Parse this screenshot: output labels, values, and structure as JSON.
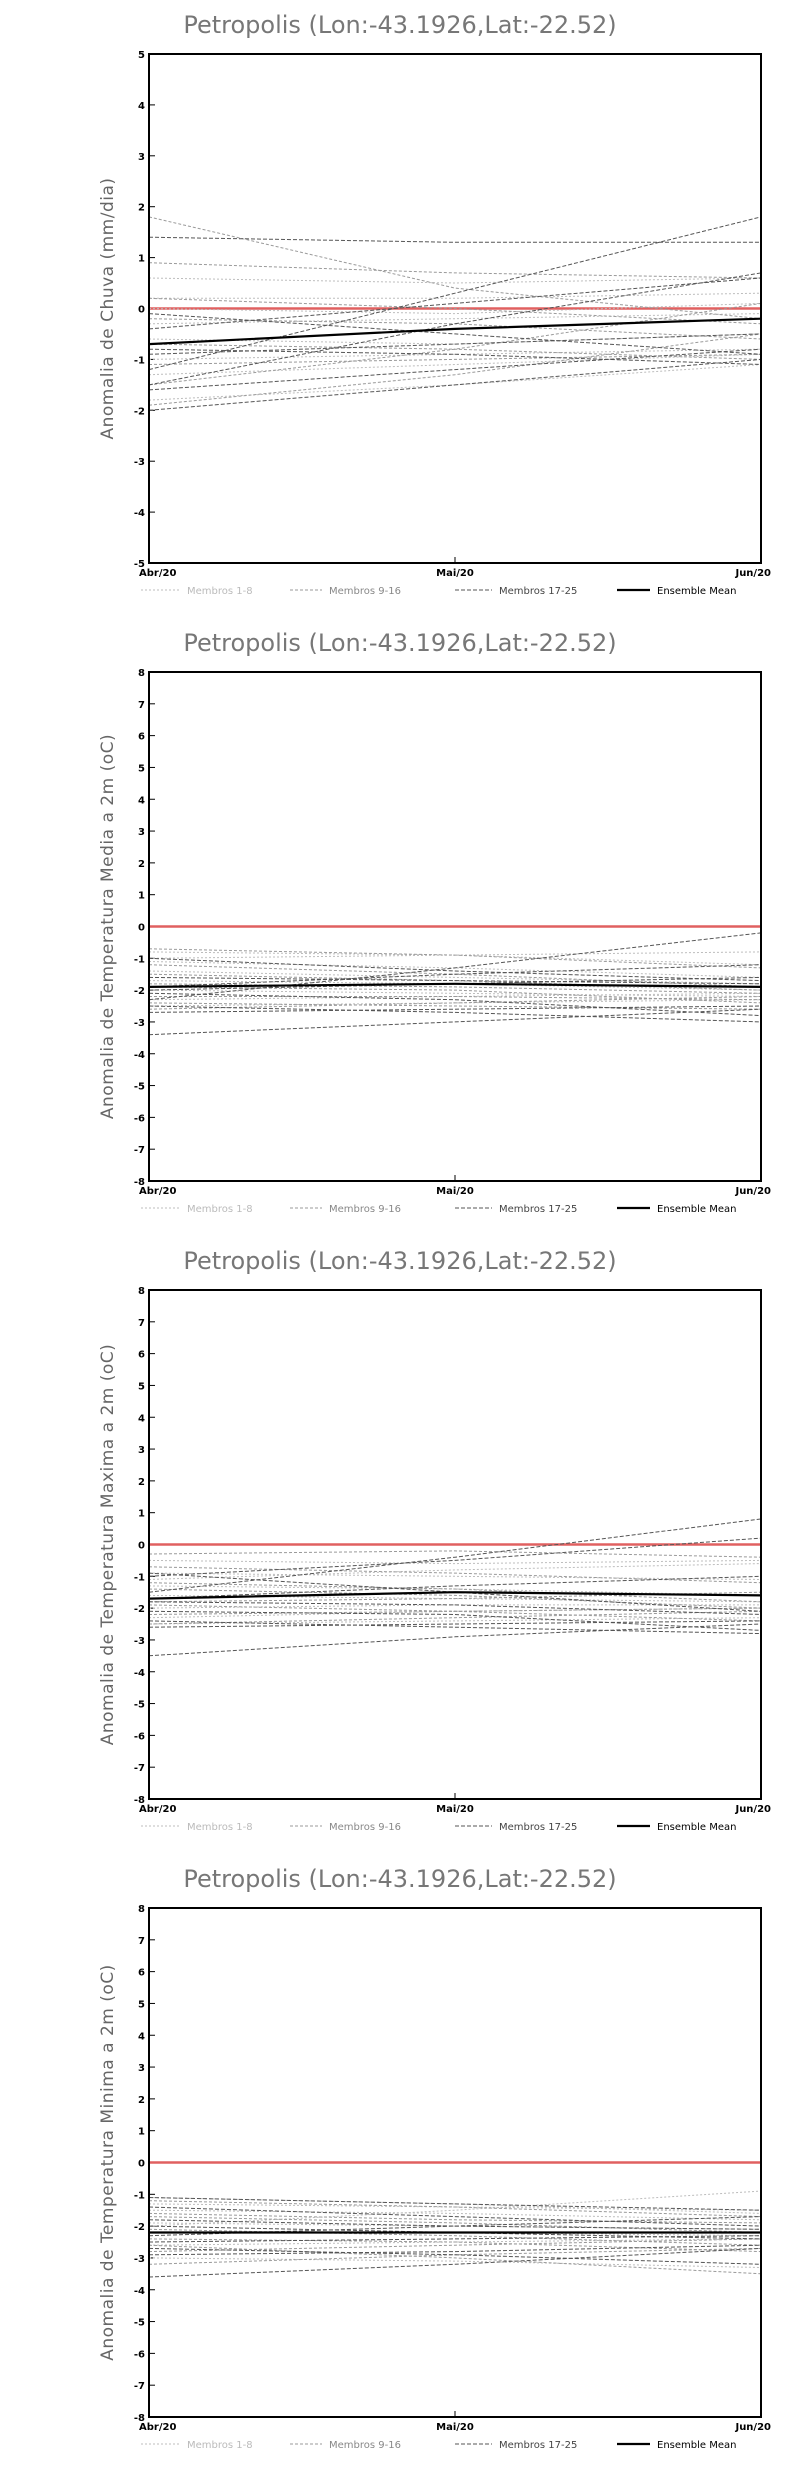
{
  "chart_data": [
    {
      "type": "line",
      "title": "Petropolis (Lon:-43.1926,Lat:-22.52)",
      "ylabel": "Anomalia de Chuva (mm/dia)",
      "x": [
        "Abr/20",
        "Mai/20",
        "Jun/20"
      ],
      "ylim": [
        -5,
        5
      ],
      "yticks": [
        -5,
        -4,
        -3,
        -2,
        -1,
        0,
        1,
        2,
        3,
        4,
        5
      ],
      "legend_position": "bottom",
      "legend": [
        "Membros 1-8",
        "Membros 9-16",
        "Membros 17-25",
        "Ensemble Mean"
      ],
      "reference_line": {
        "value": 0,
        "color": "#e06060"
      },
      "series": [
        {
          "group": 0,
          "values": [
            0.6,
            0.5,
            0.6
          ]
        },
        {
          "group": 0,
          "values": [
            0.2,
            0.2,
            0.3
          ]
        },
        {
          "group": 0,
          "values": [
            0.0,
            -0.1,
            0.1
          ]
        },
        {
          "group": 0,
          "values": [
            -0.3,
            -0.2,
            -0.1
          ]
        },
        {
          "group": 0,
          "values": [
            -0.6,
            -0.7,
            -0.5
          ]
        },
        {
          "group": 0,
          "values": [
            -1.0,
            -0.9,
            -0.8
          ]
        },
        {
          "group": 0,
          "values": [
            -1.3,
            -1.1,
            -0.9
          ]
        },
        {
          "group": 0,
          "values": [
            -1.8,
            -1.5,
            -1.1
          ]
        },
        {
          "group": 1,
          "values": [
            1.8,
            0.4,
            -0.2
          ]
        },
        {
          "group": 1,
          "values": [
            0.9,
            0.7,
            0.6
          ]
        },
        {
          "group": 1,
          "values": [
            0.2,
            0.0,
            -0.3
          ]
        },
        {
          "group": 1,
          "values": [
            -0.2,
            -0.3,
            -0.6
          ]
        },
        {
          "group": 1,
          "values": [
            -0.7,
            -0.8,
            -1.0
          ]
        },
        {
          "group": 1,
          "values": [
            -1.1,
            -1.0,
            -0.9
          ]
        },
        {
          "group": 1,
          "values": [
            -1.5,
            -0.8,
            0.1
          ]
        },
        {
          "group": 1,
          "values": [
            -1.9,
            -1.3,
            -0.5
          ]
        },
        {
          "group": 2,
          "values": [
            1.4,
            1.3,
            1.3
          ]
        },
        {
          "group": 2,
          "values": [
            -0.4,
            0.1,
            0.6
          ]
        },
        {
          "group": 2,
          "values": [
            -1.2,
            0.3,
            1.8
          ]
        },
        {
          "group": 2,
          "values": [
            -1.5,
            -0.3,
            0.7
          ]
        },
        {
          "group": 2,
          "values": [
            -0.9,
            -0.7,
            -0.5
          ]
        },
        {
          "group": 2,
          "values": [
            -2.0,
            -1.5,
            -1.0
          ]
        },
        {
          "group": 2,
          "values": [
            -1.6,
            -1.2,
            -0.8
          ]
        },
        {
          "group": 2,
          "values": [
            -0.8,
            -0.9,
            -1.1
          ]
        },
        {
          "group": 2,
          "values": [
            -0.1,
            -0.5,
            -0.9
          ]
        },
        {
          "group": 3,
          "values": [
            -0.7,
            -0.4,
            -0.2
          ]
        }
      ]
    },
    {
      "type": "line",
      "title": "Petropolis (Lon:-43.1926,Lat:-22.52)",
      "ylabel": "Anomalia de Temperatura Media a 2m (oC)",
      "x": [
        "Abr/20",
        "Mai/20",
        "Jun/20"
      ],
      "ylim": [
        -8,
        8
      ],
      "yticks": [
        -8,
        -7,
        -6,
        -5,
        -4,
        -3,
        -2,
        -1,
        0,
        1,
        2,
        3,
        4,
        5,
        6,
        7,
        8
      ],
      "legend_position": "bottom",
      "legend": [
        "Membros 1-8",
        "Membros 9-16",
        "Membros 17-25",
        "Ensemble Mean"
      ],
      "reference_line": {
        "value": 0,
        "color": "#e06060"
      },
      "series": [
        {
          "group": 0,
          "values": [
            -0.8,
            -0.9,
            -1.2
          ]
        },
        {
          "group": 0,
          "values": [
            -1.1,
            -1.3,
            -1.6
          ]
        },
        {
          "group": 0,
          "values": [
            -1.4,
            -1.6,
            -1.8
          ]
        },
        {
          "group": 0,
          "values": [
            -1.7,
            -1.8,
            -2.0
          ]
        },
        {
          "group": 0,
          "values": [
            -2.0,
            -2.1,
            -2.2
          ]
        },
        {
          "group": 0,
          "values": [
            -2.3,
            -2.2,
            -2.1
          ]
        },
        {
          "group": 0,
          "values": [
            -2.5,
            -2.4,
            -2.3
          ]
        },
        {
          "group": 0,
          "values": [
            -1.0,
            -0.9,
            -0.8
          ]
        },
        {
          "group": 1,
          "values": [
            -0.7,
            -0.9,
            -1.3
          ]
        },
        {
          "group": 1,
          "values": [
            -1.2,
            -1.5,
            -1.9
          ]
        },
        {
          "group": 1,
          "values": [
            -1.8,
            -1.9,
            -2.1
          ]
        },
        {
          "group": 1,
          "values": [
            -2.2,
            -2.2,
            -2.3
          ]
        },
        {
          "group": 1,
          "values": [
            -2.6,
            -2.4,
            -2.2
          ]
        },
        {
          "group": 1,
          "values": [
            -1.5,
            -1.7,
            -2.0
          ]
        },
        {
          "group": 1,
          "values": [
            -1.9,
            -2.0,
            -2.4
          ]
        },
        {
          "group": 1,
          "values": [
            -2.4,
            -2.5,
            -2.6
          ]
        },
        {
          "group": 2,
          "values": [
            -3.4,
            -3.0,
            -2.6
          ]
        },
        {
          "group": 2,
          "values": [
            -2.7,
            -2.6,
            -2.5
          ]
        },
        {
          "group": 2,
          "values": [
            -2.5,
            -2.7,
            -3.0
          ]
        },
        {
          "group": 2,
          "values": [
            -2.1,
            -2.3,
            -2.8
          ]
        },
        {
          "group": 2,
          "values": [
            -1.9,
            -1.5,
            -1.2
          ]
        },
        {
          "group": 2,
          "values": [
            -2.3,
            -1.3,
            -0.2
          ]
        },
        {
          "group": 2,
          "values": [
            -1.6,
            -1.7,
            -1.8
          ]
        },
        {
          "group": 2,
          "values": [
            -2.0,
            -1.8,
            -1.6
          ]
        },
        {
          "group": 2,
          "values": [
            -1.0,
            -1.4,
            -1.7
          ]
        },
        {
          "group": 3,
          "values": [
            -1.9,
            -1.8,
            -1.9
          ]
        }
      ]
    },
    {
      "type": "line",
      "title": "Petropolis (Lon:-43.1926,Lat:-22.52)",
      "ylabel": "Anomalia de Temperatura Maxima a 2m (oC)",
      "x": [
        "Abr/20",
        "Mai/20",
        "Jun/20"
      ],
      "ylim": [
        -8,
        8
      ],
      "yticks": [
        -8,
        -7,
        -6,
        -5,
        -4,
        -3,
        -2,
        -1,
        0,
        1,
        2,
        3,
        4,
        5,
        6,
        7,
        8
      ],
      "legend_position": "bottom",
      "legend": [
        "Membros 1-8",
        "Membros 9-16",
        "Membros 17-25",
        "Ensemble Mean"
      ],
      "reference_line": {
        "value": 0,
        "color": "#e06060"
      },
      "series": [
        {
          "group": 0,
          "values": [
            -0.5,
            -0.6,
            -0.5
          ]
        },
        {
          "group": 0,
          "values": [
            -0.9,
            -1.0,
            -1.1
          ]
        },
        {
          "group": 0,
          "values": [
            -1.3,
            -1.4,
            -1.6
          ]
        },
        {
          "group": 0,
          "values": [
            -1.6,
            -1.7,
            -1.8
          ]
        },
        {
          "group": 0,
          "values": [
            -2.0,
            -1.9,
            -1.9
          ]
        },
        {
          "group": 0,
          "values": [
            -2.3,
            -2.1,
            -2.0
          ]
        },
        {
          "group": 0,
          "values": [
            -2.5,
            -2.4,
            -2.3
          ]
        },
        {
          "group": 0,
          "values": [
            -1.1,
            -0.8,
            -0.6
          ]
        },
        {
          "group": 1,
          "values": [
            -0.7,
            -0.9,
            -1.2
          ]
        },
        {
          "group": 1,
          "values": [
            -1.2,
            -1.4,
            -1.8
          ]
        },
        {
          "group": 1,
          "values": [
            -1.8,
            -1.7,
            -1.5
          ]
        },
        {
          "group": 1,
          "values": [
            -2.2,
            -2.1,
            -2.0
          ]
        },
        {
          "group": 1,
          "values": [
            -2.5,
            -2.3,
            -2.1
          ]
        },
        {
          "group": 1,
          "values": [
            -1.4,
            -1.6,
            -2.0
          ]
        },
        {
          "group": 1,
          "values": [
            -1.9,
            -2.1,
            -2.4
          ]
        },
        {
          "group": 1,
          "values": [
            -0.3,
            -0.2,
            -0.4
          ]
        },
        {
          "group": 2,
          "values": [
            -3.5,
            -2.9,
            -2.5
          ]
        },
        {
          "group": 2,
          "values": [
            -2.6,
            -2.5,
            -2.4
          ]
        },
        {
          "group": 2,
          "values": [
            -2.4,
            -2.6,
            -2.8
          ]
        },
        {
          "group": 2,
          "values": [
            -1.5,
            -0.4,
            0.8
          ]
        },
        {
          "group": 2,
          "values": [
            -1.0,
            -0.5,
            0.2
          ]
        },
        {
          "group": 2,
          "values": [
            -1.7,
            -1.3,
            -1.0
          ]
        },
        {
          "group": 2,
          "values": [
            -2.1,
            -2.2,
            -2.7
          ]
        },
        {
          "group": 2,
          "values": [
            -1.8,
            -1.9,
            -2.2
          ]
        },
        {
          "group": 2,
          "values": [
            -0.9,
            -1.5,
            -2.1
          ]
        },
        {
          "group": 3,
          "values": [
            -1.7,
            -1.5,
            -1.6
          ]
        }
      ]
    },
    {
      "type": "line",
      "title": "Petropolis (Lon:-43.1926,Lat:-22.52)",
      "ylabel": "Anomalia de Temperatura Minima a 2m (oC)",
      "x": [
        "Abr/20",
        "Mai/20",
        "Jun/20"
      ],
      "ylim": [
        -8,
        8
      ],
      "yticks": [
        -8,
        -7,
        -6,
        -5,
        -4,
        -3,
        -2,
        -1,
        0,
        1,
        2,
        3,
        4,
        5,
        6,
        7,
        8
      ],
      "legend_position": "bottom",
      "legend": [
        "Membros 1-8",
        "Membros 9-16",
        "Membros 17-25",
        "Ensemble Mean"
      ],
      "reference_line": {
        "value": 0,
        "color": "#e06060"
      },
      "series": [
        {
          "group": 0,
          "values": [
            -1.1,
            -1.3,
            -1.6
          ]
        },
        {
          "group": 0,
          "values": [
            -1.5,
            -1.6,
            -1.8
          ]
        },
        {
          "group": 0,
          "values": [
            -1.9,
            -2.0,
            -2.1
          ]
        },
        {
          "group": 0,
          "values": [
            -2.2,
            -2.2,
            -2.3
          ]
        },
        {
          "group": 0,
          "values": [
            -2.6,
            -2.5,
            -2.4
          ]
        },
        {
          "group": 0,
          "values": [
            -3.0,
            -3.1,
            -3.3
          ]
        },
        {
          "group": 0,
          "values": [
            -2.0,
            -1.5,
            -0.9
          ]
        },
        {
          "group": 0,
          "values": [
            -1.3,
            -1.4,
            -1.5
          ]
        },
        {
          "group": 1,
          "values": [
            -1.2,
            -1.4,
            -1.7
          ]
        },
        {
          "group": 1,
          "values": [
            -1.7,
            -1.9,
            -2.2
          ]
        },
        {
          "group": 1,
          "values": [
            -2.1,
            -2.3,
            -2.6
          ]
        },
        {
          "group": 1,
          "values": [
            -2.4,
            -2.5,
            -2.8
          ]
        },
        {
          "group": 1,
          "values": [
            -2.8,
            -2.6,
            -2.4
          ]
        },
        {
          "group": 1,
          "values": [
            -3.2,
            -2.9,
            -2.7
          ]
        },
        {
          "group": 1,
          "values": [
            -1.6,
            -1.8,
            -1.9
          ]
        },
        {
          "group": 1,
          "values": [
            -2.6,
            -3.0,
            -3.5
          ]
        },
        {
          "group": 2,
          "values": [
            -3.6,
            -3.2,
            -2.7
          ]
        },
        {
          "group": 2,
          "values": [
            -1.1,
            -1.3,
            -1.5
          ]
        },
        {
          "group": 2,
          "values": [
            -2.3,
            -2.0,
            -1.7
          ]
        },
        {
          "group": 2,
          "values": [
            -2.0,
            -2.2,
            -2.4
          ]
        },
        {
          "group": 2,
          "values": [
            -2.5,
            -2.4,
            -2.3
          ]
        },
        {
          "group": 2,
          "values": [
            -2.7,
            -2.9,
            -3.2
          ]
        },
        {
          "group": 2,
          "values": [
            -1.8,
            -2.0,
            -2.1
          ]
        },
        {
          "group": 2,
          "values": [
            -1.4,
            -1.7,
            -2.0
          ]
        },
        {
          "group": 2,
          "values": [
            -2.9,
            -2.8,
            -2.6
          ]
        },
        {
          "group": 3,
          "values": [
            -2.2,
            -2.2,
            -2.2
          ]
        }
      ]
    }
  ]
}
